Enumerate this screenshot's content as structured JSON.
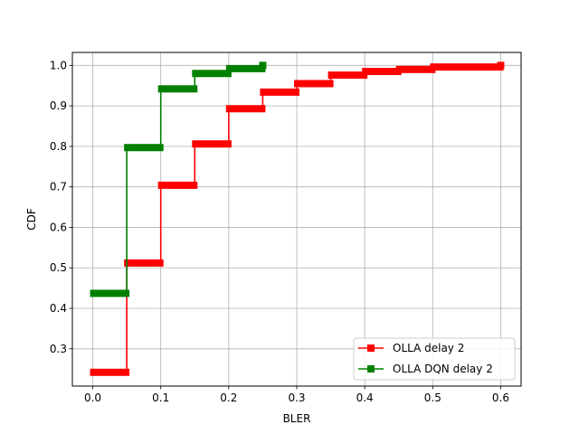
{
  "chart_data": {
    "type": "line",
    "title": "",
    "xlabel": "BLER",
    "ylabel": "CDF",
    "xlim": [
      -0.03,
      0.63
    ],
    "ylim": [
      0.208,
      1.032
    ],
    "xticks": [
      "0.0",
      "0.1",
      "0.2",
      "0.3",
      "0.4",
      "0.5",
      "0.6"
    ],
    "yticks": [
      "0.3",
      "0.4",
      "0.5",
      "0.6",
      "0.7",
      "0.8",
      "0.9",
      "1.0"
    ],
    "grid": true,
    "legend_position": "lower-right",
    "series": [
      {
        "name": "OLLA delay 2",
        "color": "#ff0000",
        "marker": "square",
        "segments": [
          {
            "x0": 0.0,
            "x1": 0.05,
            "y": 0.242
          },
          {
            "x0": 0.05,
            "x1": 0.1,
            "y": 0.512
          },
          {
            "x0": 0.1,
            "x1": 0.15,
            "y": 0.704
          },
          {
            "x0": 0.15,
            "x1": 0.2,
            "y": 0.806
          },
          {
            "x0": 0.2,
            "x1": 0.25,
            "y": 0.893
          },
          {
            "x0": 0.25,
            "x1": 0.3,
            "y": 0.934
          },
          {
            "x0": 0.3,
            "x1": 0.35,
            "y": 0.955
          },
          {
            "x0": 0.35,
            "x1": 0.4,
            "y": 0.976
          },
          {
            "x0": 0.4,
            "x1": 0.45,
            "y": 0.985
          },
          {
            "x0": 0.45,
            "x1": 0.5,
            "y": 0.99
          },
          {
            "x0": 0.5,
            "x1": 0.6,
            "y": 0.996
          },
          {
            "x0": 0.6,
            "x1": 0.6,
            "y": 1.0
          }
        ]
      },
      {
        "name": "OLLA DQN delay 2",
        "color": "#008000",
        "marker": "square",
        "segments": [
          {
            "x0": 0.0,
            "x1": 0.05,
            "y": 0.437
          },
          {
            "x0": 0.05,
            "x1": 0.1,
            "y": 0.797
          },
          {
            "x0": 0.1,
            "x1": 0.15,
            "y": 0.942
          },
          {
            "x0": 0.15,
            "x1": 0.2,
            "y": 0.98
          },
          {
            "x0": 0.2,
            "x1": 0.25,
            "y": 0.992
          },
          {
            "x0": 0.25,
            "x1": 0.25,
            "y": 1.0
          }
        ]
      }
    ]
  }
}
